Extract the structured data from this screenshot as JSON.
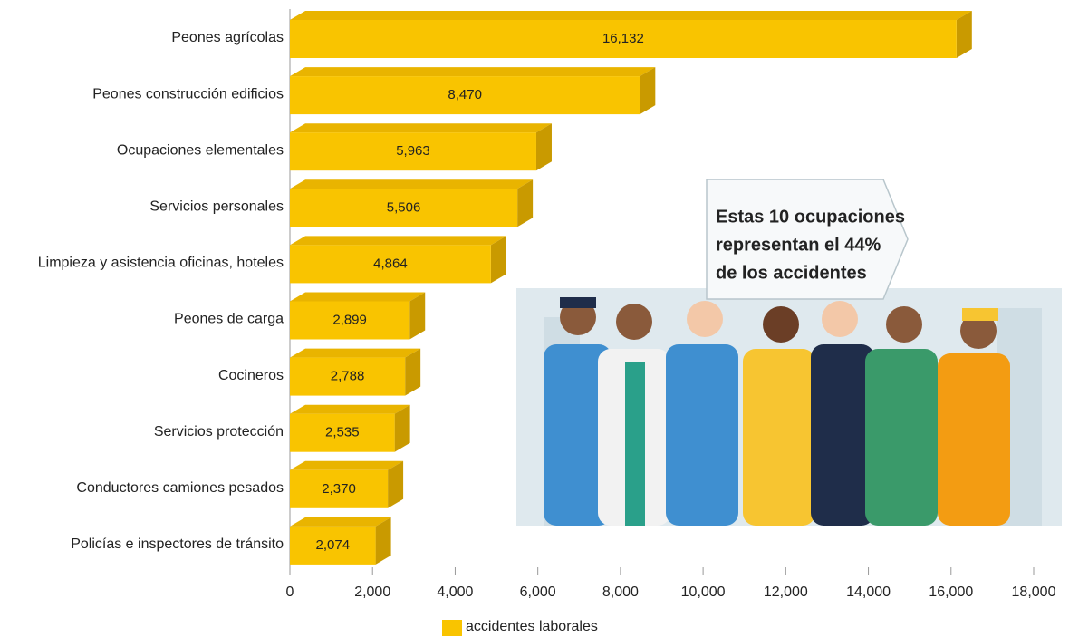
{
  "chart_data": {
    "type": "hbar3d",
    "categories": [
      "Peones agrícolas",
      "Peones construcción edificios",
      "Ocupaciones elementales",
      "Servicios personales",
      "Limpieza y asistencia oficinas, hoteles",
      "Peones de carga",
      "Cocineros",
      "Servicios protección",
      "Conductores camiones pesados",
      "Policías e inspectores de tránsito"
    ],
    "series": [
      {
        "name": "accidentes laborales",
        "color": "#f9c400",
        "values": [
          16132,
          8470,
          5963,
          5506,
          4864,
          2899,
          2788,
          2535,
          2370,
          2074
        ],
        "value_labels": [
          "16,132",
          "8,470",
          "5,963",
          "5,506",
          "4,864",
          "2,899",
          "2,788",
          "2,535",
          "2,370",
          "2,074"
        ]
      }
    ],
    "xlim": [
      0,
      18000
    ],
    "xticks": [
      0,
      {
        "value": 2000,
        "label": "2,000"
      },
      {
        "value": 4000,
        "label": "4,000"
      },
      {
        "value": 6000,
        "label": "6,000"
      },
      {
        "value": 8000,
        "label": "8,000"
      },
      {
        "value": 10000,
        "label": "10,000"
      },
      {
        "value": 12000,
        "label": "12,000"
      },
      {
        "value": 14000,
        "label": "14,000"
      },
      {
        "value": 16000,
        "label": "16,000"
      },
      {
        "value": 18000,
        "label": "18,000"
      }
    ],
    "annotation": [
      "Estas 10 ocupaciones",
      "representan el 44%",
      "de los accidentes"
    ]
  }
}
